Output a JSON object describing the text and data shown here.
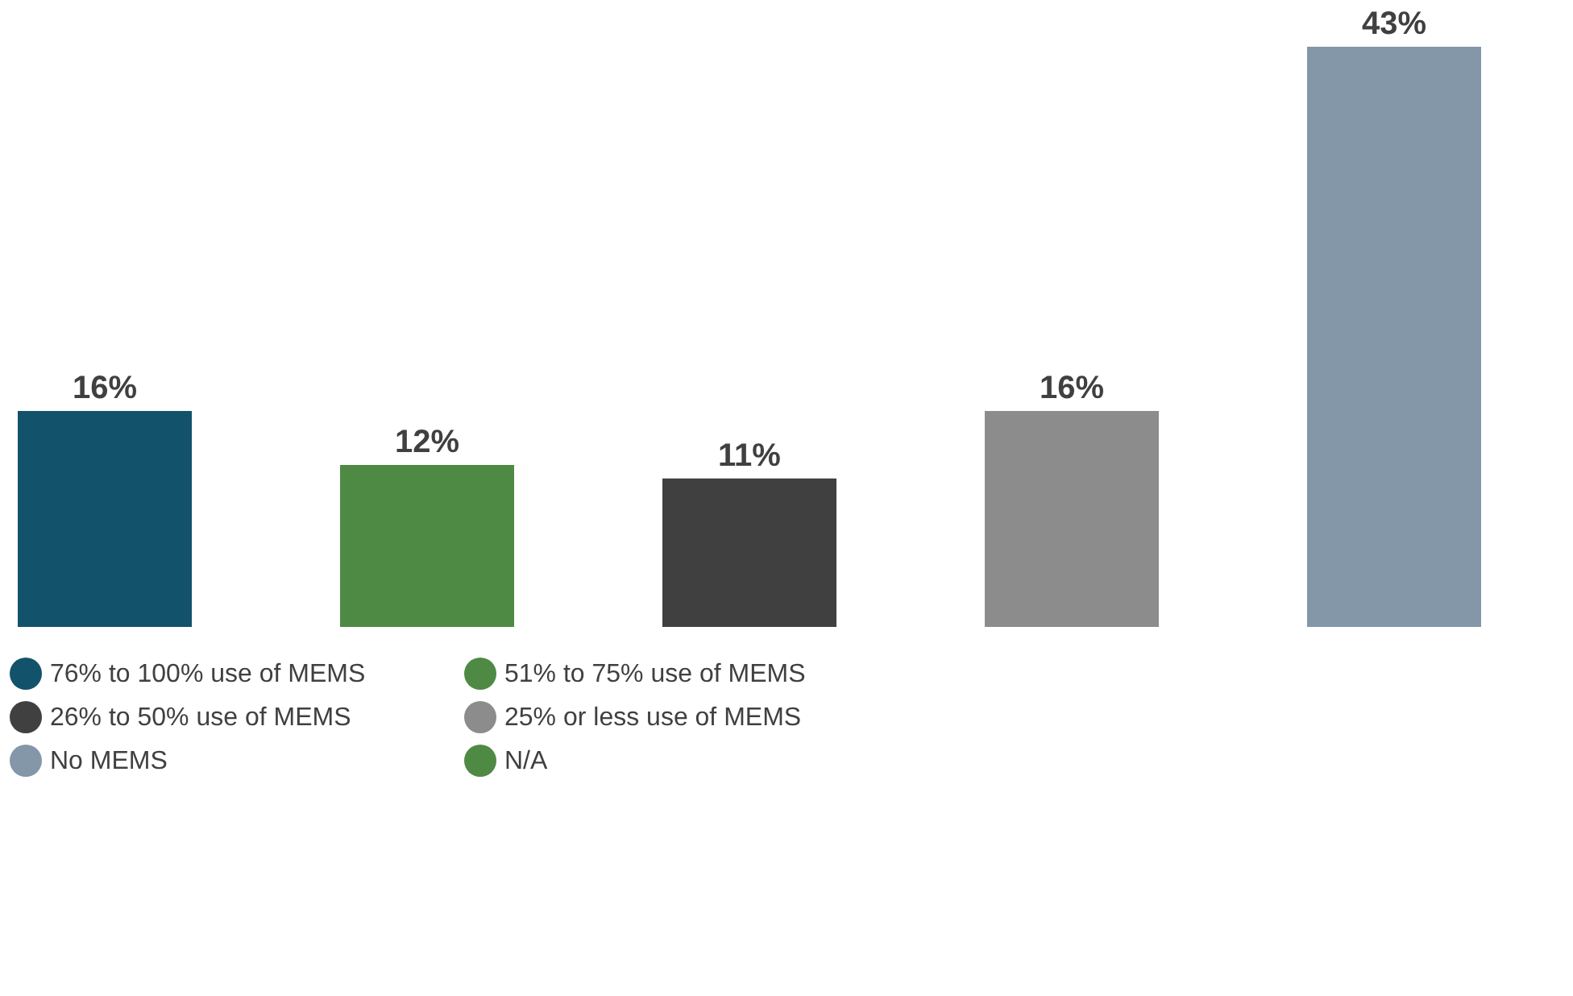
{
  "chart_data": {
    "type": "bar",
    "categories": [
      null,
      null,
      null,
      null,
      null
    ],
    "legend": "bottom",
    "stacked": true,
    "series": [
      {
        "name": "76% to 100% use of MEMS",
        "color": "#12536b",
        "values": [
          16,
          null,
          null,
          null,
          null
        ],
        "value_labels": [
          "16%",
          null,
          null,
          null,
          null
        ]
      },
      {
        "name": "51% to 75% use of MEMS",
        "color": "#4e8a44",
        "values": [
          null,
          12,
          null,
          null,
          null
        ],
        "value_labels": [
          null,
          "12%",
          null,
          null,
          null
        ]
      },
      {
        "name": "26% to 50% use of MEMS",
        "color": "#404040",
        "values": [
          null,
          null,
          11,
          null,
          null
        ],
        "value_labels": [
          null,
          null,
          "11%",
          null,
          null
        ]
      },
      {
        "name": "25% or less use of MEMS",
        "color": "#8c8c8c",
        "values": [
          null,
          null,
          null,
          16,
          null
        ],
        "value_labels": [
          null,
          null,
          null,
          "16%",
          null
        ]
      },
      {
        "name": "No MEMS",
        "color": "#8497a8",
        "values": [
          null,
          null,
          null,
          null,
          43
        ],
        "value_labels": [
          null,
          null,
          null,
          null,
          "43%"
        ]
      },
      {
        "name": "N/A",
        "color": "#4e8a44",
        "values": [
          null,
          null,
          null,
          null,
          null
        ],
        "value_labels": [
          null,
          null,
          null,
          null,
          null
        ]
      }
    ]
  }
}
